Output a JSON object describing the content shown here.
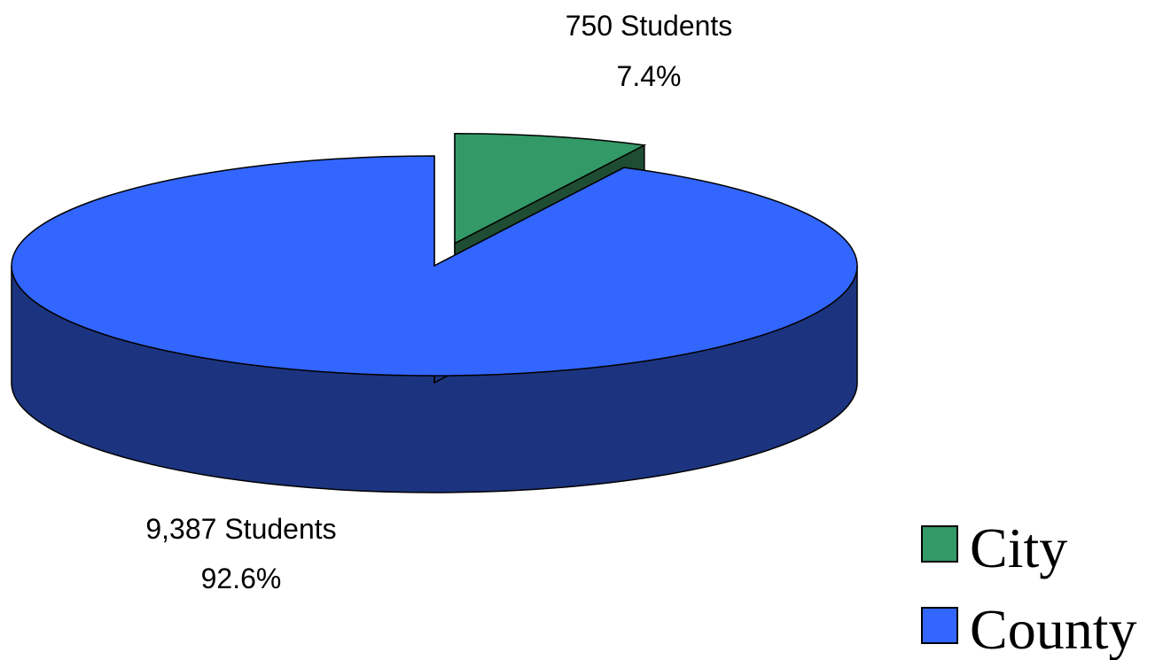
{
  "chart_data": {
    "type": "pie",
    "style": "3d-exploded",
    "slices": [
      {
        "name": "City",
        "value": 750,
        "value_label": "750 Students",
        "percent": 7.4,
        "percent_label": "7.4%",
        "color": "#339966",
        "side_color": "#1e4d33",
        "exploded": true
      },
      {
        "name": "County",
        "value": 9387,
        "value_label": "9,387 Students",
        "percent": 92.6,
        "percent_label": "92.6%",
        "color": "#3366ff",
        "side_color": "#1c347f",
        "exploded": false
      }
    ],
    "legend": {
      "position": "bottom-right",
      "entries": [
        "City",
        "County"
      ]
    }
  }
}
